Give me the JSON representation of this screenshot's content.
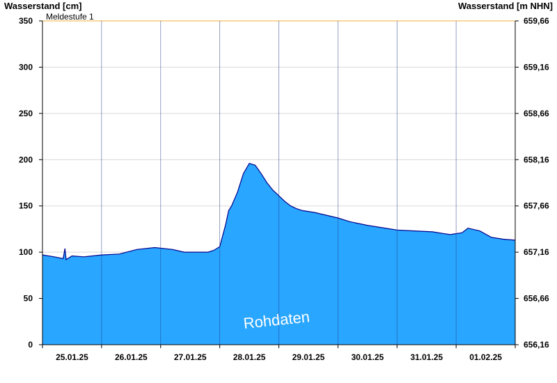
{
  "chart_data": {
    "type": "area",
    "title": "",
    "ylabel_left": "Wasserstand [cm]",
    "ylabel_right": "Wasserstand [m NHN]",
    "ylim": [
      0,
      350
    ],
    "y_ticks": [
      0,
      50,
      100,
      150,
      200,
      250,
      300,
      350
    ],
    "y2_ticks": [
      "656,16",
      "656,66",
      "657,16",
      "657,66",
      "658,16",
      "658,66",
      "659,16",
      "659,66"
    ],
    "x_tick_labels": [
      "25.01.25",
      "26.01.25",
      "27.01.25",
      "28.01.25",
      "29.01.25",
      "30.01.25",
      "31.01.25",
      "01.02.25"
    ],
    "x_range_days": [
      0,
      8
    ],
    "threshold": {
      "label": "Meldestufe 1",
      "value": 350,
      "color": "#f5c060"
    },
    "series": [
      {
        "name": "",
        "color": "#29a6ff",
        "line_color": "#00008b",
        "x": [
          0.0,
          0.2,
          0.35,
          0.38,
          0.4,
          0.5,
          0.7,
          1.0,
          1.3,
          1.6,
          1.9,
          2.2,
          2.4,
          2.6,
          2.8,
          2.9,
          3.0,
          3.05,
          3.1,
          3.15,
          3.2,
          3.3,
          3.4,
          3.5,
          3.6,
          3.7,
          3.8,
          3.9,
          4.0,
          4.1,
          4.2,
          4.3,
          4.4,
          4.6,
          4.8,
          5.0,
          5.2,
          5.5,
          5.8,
          6.0,
          6.3,
          6.6,
          6.9,
          7.1,
          7.2,
          7.4,
          7.6,
          7.8,
          8.0
        ],
        "y": [
          97,
          95,
          93,
          104,
          92,
          96,
          95,
          97,
          98,
          103,
          105,
          103,
          100,
          100,
          100,
          102,
          106,
          118,
          130,
          145,
          150,
          165,
          185,
          196,
          194,
          185,
          175,
          167,
          161,
          155,
          150,
          147,
          145,
          143,
          140,
          137,
          133,
          129,
          126,
          124,
          123,
          122,
          119,
          121,
          126,
          123,
          116,
          114,
          113
        ]
      }
    ],
    "annotations": [
      "Rohdaten"
    ]
  }
}
